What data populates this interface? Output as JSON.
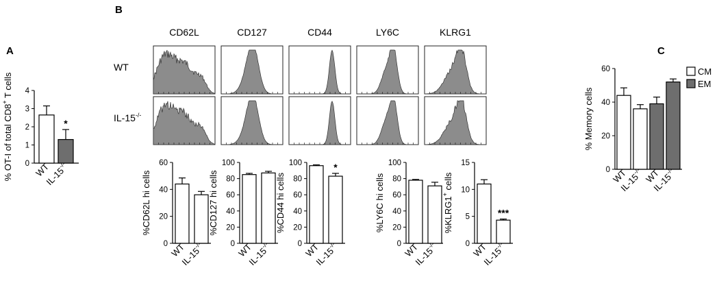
{
  "panel_labels": {
    "a": "A",
    "b": "B",
    "c": "C"
  },
  "histograms": {
    "columns": [
      "CD62L",
      "CD127",
      "CD44",
      "LY6C",
      "KLRG1"
    ],
    "rows": [
      {
        "label": "WT",
        "sup": ""
      },
      {
        "label": "IL-15",
        "sup": "-/-"
      }
    ]
  },
  "colors": {
    "dark_bar": "#6e6e6e",
    "hist_fill": "#8c8c8c",
    "open_bar": "#ffffff"
  },
  "chart_data": [
    {
      "id": "A",
      "type": "bar",
      "ylabel": "% OT-I of total CD8",
      "ylabel_sup": "+",
      "ylabel_end": " T cells",
      "ylim": [
        0,
        4
      ],
      "yticks": [
        0,
        1,
        2,
        3,
        4
      ],
      "categories": [
        "WT",
        "IL-15"
      ],
      "category_sup": [
        "",
        "-/-"
      ],
      "values": [
        2.65,
        1.3
      ],
      "errors": [
        0.5,
        0.55
      ],
      "fills": [
        "white",
        "dark"
      ],
      "annotations": [
        "",
        "*"
      ]
    },
    {
      "id": "B1",
      "type": "bar",
      "ylabel": "%CD62L hi cells",
      "ylabel_sup": "",
      "ylabel_end": "",
      "ylim": [
        0,
        60
      ],
      "yticks": [
        0,
        20,
        40,
        60
      ],
      "categories": [
        "WT",
        "IL-15"
      ],
      "category_sup": [
        "",
        "-/-"
      ],
      "values": [
        44,
        36
      ],
      "errors": [
        4.5,
        2.5
      ],
      "fills": [
        "white",
        "white"
      ],
      "annotations": [
        "",
        ""
      ]
    },
    {
      "id": "B2",
      "type": "bar",
      "ylabel": "%CD127 hi cells",
      "ylabel_sup": "",
      "ylabel_end": "",
      "ylim": [
        0,
        100
      ],
      "yticks": [
        0,
        20,
        40,
        60,
        80,
        100
      ],
      "categories": [
        "WT",
        "IL-15"
      ],
      "category_sup": [
        "",
        "-/-"
      ],
      "values": [
        85,
        87
      ],
      "errors": [
        1.5,
        2
      ],
      "fills": [
        "white",
        "white"
      ],
      "annotations": [
        "",
        ""
      ]
    },
    {
      "id": "B3",
      "type": "bar",
      "ylabel": "%CD44  hi cells",
      "ylabel_sup": "",
      "ylabel_end": "",
      "ylim": [
        0,
        100
      ],
      "yticks": [
        0,
        20,
        40,
        60,
        80,
        100
      ],
      "categories": [
        "WT",
        "IL-15"
      ],
      "category_sup": [
        "",
        "-/-"
      ],
      "values": [
        96,
        83
      ],
      "errors": [
        1,
        3.5
      ],
      "fills": [
        "white",
        "white"
      ],
      "annotations": [
        "",
        "*"
      ]
    },
    {
      "id": "B4",
      "type": "bar",
      "ylabel": "%LY6C hi cells",
      "ylabel_sup": "",
      "ylabel_end": "",
      "ylim": [
        0,
        100
      ],
      "yticks": [
        0,
        20,
        40,
        60,
        80,
        100
      ],
      "categories": [
        "WT",
        "IL-15"
      ],
      "category_sup": [
        "",
        "-/-"
      ],
      "values": [
        78,
        71
      ],
      "errors": [
        1,
        4.5
      ],
      "fills": [
        "white",
        "white"
      ],
      "annotations": [
        "",
        ""
      ]
    },
    {
      "id": "B5",
      "type": "bar",
      "ylabel": "%KLRG1",
      "ylabel_sup": "+",
      "ylabel_end": " cells",
      "ylim": [
        0,
        15
      ],
      "yticks": [
        0,
        5,
        10,
        15
      ],
      "categories": [
        "WT",
        "IL-15"
      ],
      "category_sup": [
        "",
        "-/-"
      ],
      "values": [
        11,
        4.3
      ],
      "errors": [
        0.8,
        0.2
      ],
      "fills": [
        "white",
        "white"
      ],
      "annotations": [
        "",
        "***"
      ]
    },
    {
      "id": "C",
      "type": "bar",
      "ylabel": "% Memory cells",
      "ylabel_sup": "",
      "ylabel_end": "",
      "ylim": [
        0,
        60
      ],
      "yticks": [
        0,
        20,
        40,
        60
      ],
      "categories": [
        "WT",
        "IL-15",
        "WT",
        "IL-15"
      ],
      "category_sup": [
        "",
        "-/-",
        "",
        "-/-"
      ],
      "values": [
        44,
        36,
        39,
        52
      ],
      "errors": [
        4.5,
        2.5,
        4,
        1.8
      ],
      "fills": [
        "white",
        "white",
        "dark",
        "dark"
      ],
      "annotations": [
        "",
        "",
        "",
        ""
      ],
      "legend": [
        {
          "name": "CM",
          "fill": "white"
        },
        {
          "name": "EM",
          "fill": "dark"
        }
      ],
      "legend_position": "top-right"
    }
  ]
}
